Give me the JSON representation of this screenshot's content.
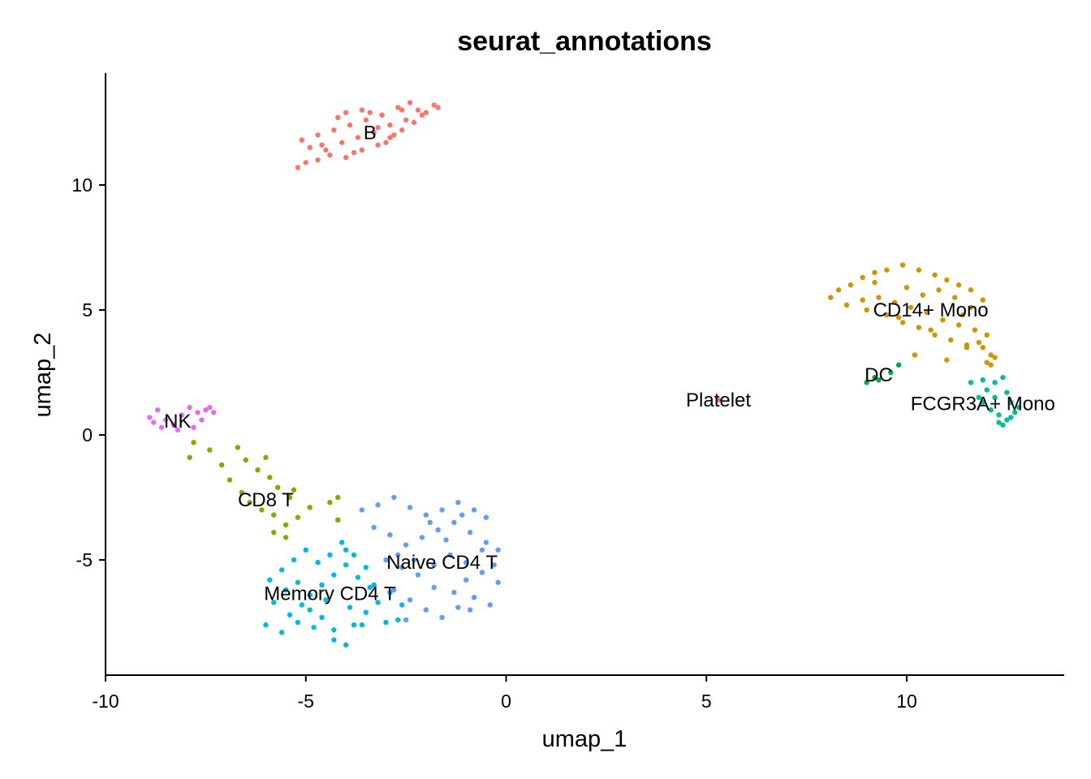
{
  "chart_data": {
    "type": "scatter",
    "title": "seurat_annotations",
    "xlabel": "umap_1",
    "ylabel": "umap_2",
    "xlim": [
      -10,
      14
    ],
    "ylim": [
      -9.5,
      14.5
    ],
    "x_ticks": [
      -10,
      -5,
      0,
      5,
      10
    ],
    "x_tick_labels": [
      "-10",
      "-5",
      "0",
      "5",
      "10"
    ],
    "y_ticks": [
      -5,
      0,
      5,
      10
    ],
    "y_tick_labels": [
      "-5",
      "0",
      "5",
      "10"
    ],
    "grid": false,
    "legend": "none",
    "series": [
      {
        "name": "B",
        "color": "#F8766D",
        "label_at": [
          -3.4,
          12.1
        ],
        "points": [
          [
            -5.2,
            10.7
          ],
          [
            -5.0,
            10.9
          ],
          [
            -4.7,
            11.0
          ],
          [
            -4.4,
            11.2
          ],
          [
            -4.0,
            11.1
          ],
          [
            -3.6,
            11.4
          ],
          [
            -3.2,
            11.6
          ],
          [
            -2.9,
            11.9
          ],
          [
            -2.6,
            12.2
          ],
          [
            -2.3,
            12.5
          ],
          [
            -2.0,
            12.9
          ],
          [
            -1.7,
            13.1
          ],
          [
            -5.1,
            11.8
          ],
          [
            -4.7,
            12.0
          ],
          [
            -4.3,
            12.2
          ],
          [
            -3.9,
            12.4
          ],
          [
            -3.5,
            12.6
          ],
          [
            -3.1,
            12.8
          ],
          [
            -2.7,
            13.1
          ],
          [
            -2.4,
            13.3
          ],
          [
            -4.9,
            11.5
          ],
          [
            -4.5,
            11.4
          ],
          [
            -4.1,
            11.7
          ],
          [
            -3.7,
            11.9
          ],
          [
            -3.3,
            12.1
          ],
          [
            -2.9,
            12.4
          ],
          [
            -2.5,
            12.6
          ],
          [
            -2.1,
            12.8
          ],
          [
            -4.0,
            12.9
          ],
          [
            -3.6,
            13.0
          ],
          [
            -3.2,
            12.3
          ],
          [
            -2.8,
            12.0
          ],
          [
            -4.6,
            11.6
          ],
          [
            -3.8,
            11.3
          ],
          [
            -3.0,
            11.7
          ],
          [
            -2.2,
            13.0
          ],
          [
            -1.8,
            13.2
          ],
          [
            -4.2,
            12.7
          ],
          [
            -3.4,
            12.9
          ],
          [
            -2.6,
            13.0
          ]
        ]
      },
      {
        "name": "CD14+ Mono",
        "color": "#CD9600",
        "label_at": [
          10.6,
          5.0
        ],
        "points": [
          [
            8.1,
            5.5
          ],
          [
            8.3,
            5.8
          ],
          [
            8.6,
            6.0
          ],
          [
            8.9,
            6.3
          ],
          [
            9.2,
            6.5
          ],
          [
            9.5,
            6.6
          ],
          [
            9.9,
            6.8
          ],
          [
            10.3,
            6.6
          ],
          [
            10.7,
            6.4
          ],
          [
            11.0,
            6.2
          ],
          [
            11.3,
            6.0
          ],
          [
            11.6,
            5.8
          ],
          [
            11.9,
            5.4
          ],
          [
            8.5,
            5.2
          ],
          [
            8.9,
            5.4
          ],
          [
            9.3,
            5.5
          ],
          [
            9.7,
            5.3
          ],
          [
            10.1,
            5.1
          ],
          [
            10.5,
            4.9
          ],
          [
            10.9,
            4.6
          ],
          [
            11.3,
            4.4
          ],
          [
            11.7,
            4.2
          ],
          [
            12.0,
            4.0
          ],
          [
            9.5,
            4.8
          ],
          [
            9.9,
            4.5
          ],
          [
            10.3,
            4.3
          ],
          [
            10.7,
            4.0
          ],
          [
            11.1,
            3.8
          ],
          [
            11.5,
            3.6
          ],
          [
            11.9,
            3.5
          ],
          [
            12.1,
            3.2
          ],
          [
            12.1,
            2.8
          ],
          [
            10.2,
            3.2
          ],
          [
            11.0,
            3.0
          ],
          [
            11.5,
            3.5
          ],
          [
            12.2,
            3.1
          ],
          [
            9.2,
            6.1
          ],
          [
            10.0,
            5.9
          ],
          [
            10.4,
            5.6
          ],
          [
            10.8,
            5.8
          ],
          [
            11.2,
            5.5
          ],
          [
            11.6,
            5.1
          ],
          [
            9.0,
            5.0
          ],
          [
            9.8,
            4.7
          ],
          [
            10.6,
            4.2
          ],
          [
            11.4,
            4.8
          ],
          [
            11.8,
            3.7
          ],
          [
            12.0,
            2.9
          ]
        ]
      },
      {
        "name": "DC",
        "color": "#00A94F",
        "label_at": [
          9.3,
          2.4
        ],
        "points": [
          [
            9.0,
            2.1
          ],
          [
            9.3,
            2.2
          ],
          [
            9.6,
            2.5
          ],
          [
            9.8,
            2.8
          ],
          [
            9.2,
            2.3
          ]
        ]
      },
      {
        "name": "FCGR3A+ Mono",
        "color": "#00BF96",
        "label_at": [
          11.9,
          1.25
        ],
        "points": [
          [
            11.6,
            2.1
          ],
          [
            11.9,
            2.2
          ],
          [
            12.2,
            2.1
          ],
          [
            12.4,
            2.3
          ],
          [
            12.5,
            1.7
          ],
          [
            12.2,
            1.5
          ],
          [
            11.9,
            1.3
          ],
          [
            12.1,
            1.0
          ],
          [
            12.3,
            0.8
          ],
          [
            12.5,
            0.6
          ],
          [
            12.4,
            0.4
          ],
          [
            12.7,
            0.9
          ],
          [
            12.6,
            1.3
          ],
          [
            12.0,
            1.8
          ],
          [
            11.8,
            1.5
          ],
          [
            12.3,
            0.5
          ],
          [
            12.6,
            0.7
          ],
          [
            12.8,
            1.1
          ]
        ]
      },
      {
        "name": "Memory CD4 T",
        "color": "#00B8E7",
        "label_at": [
          -4.4,
          -6.35
        ],
        "points": [
          [
            -6.0,
            -7.6
          ],
          [
            -5.6,
            -7.9
          ],
          [
            -5.2,
            -7.5
          ],
          [
            -4.9,
            -7.0
          ],
          [
            -4.6,
            -7.3
          ],
          [
            -4.3,
            -7.8
          ],
          [
            -4.0,
            -8.4
          ],
          [
            -4.3,
            -8.2
          ],
          [
            -3.8,
            -7.6
          ],
          [
            -3.5,
            -7.1
          ],
          [
            -3.2,
            -6.7
          ],
          [
            -2.9,
            -6.3
          ],
          [
            -2.6,
            -6.8
          ],
          [
            -5.8,
            -6.7
          ],
          [
            -5.5,
            -6.2
          ],
          [
            -5.2,
            -5.9
          ],
          [
            -4.9,
            -6.4
          ],
          [
            -4.6,
            -6.0
          ],
          [
            -4.3,
            -5.6
          ],
          [
            -4.0,
            -5.2
          ],
          [
            -3.7,
            -5.7
          ],
          [
            -3.4,
            -6.1
          ],
          [
            -5.6,
            -5.4
          ],
          [
            -5.3,
            -5.0
          ],
          [
            -5.0,
            -4.6
          ],
          [
            -4.7,
            -5.1
          ],
          [
            -4.4,
            -4.8
          ],
          [
            -4.1,
            -4.3
          ],
          [
            -3.8,
            -4.8
          ],
          [
            -3.5,
            -5.3
          ],
          [
            -4.2,
            -3.4
          ],
          [
            -5.9,
            -5.8
          ],
          [
            -5.4,
            -7.2
          ],
          [
            -4.8,
            -7.7
          ],
          [
            -3.6,
            -7.6
          ],
          [
            -3.0,
            -7.5
          ],
          [
            -2.7,
            -7.4
          ],
          [
            -5.1,
            -6.8
          ],
          [
            -4.5,
            -6.6
          ],
          [
            -3.9,
            -6.9
          ],
          [
            -3.3,
            -6.0
          ],
          [
            -4.0,
            -4.6
          ]
        ]
      },
      {
        "name": "Naive CD4 T",
        "color": "#619CFF",
        "label_at": [
          -1.6,
          -5.1
        ],
        "points": [
          [
            -3.6,
            -3.0
          ],
          [
            -3.2,
            -2.8
          ],
          [
            -2.8,
            -2.5
          ],
          [
            -2.4,
            -2.9
          ],
          [
            -2.0,
            -3.2
          ],
          [
            -1.6,
            -3.0
          ],
          [
            -1.2,
            -2.7
          ],
          [
            -0.8,
            -3.0
          ],
          [
            -0.5,
            -3.3
          ],
          [
            -3.3,
            -3.7
          ],
          [
            -2.9,
            -4.0
          ],
          [
            -2.5,
            -4.4
          ],
          [
            -2.1,
            -4.1
          ],
          [
            -1.7,
            -3.8
          ],
          [
            -1.3,
            -3.5
          ],
          [
            -0.9,
            -3.9
          ],
          [
            -0.5,
            -4.3
          ],
          [
            -0.2,
            -4.6
          ],
          [
            -3.0,
            -5.0
          ],
          [
            -2.6,
            -5.3
          ],
          [
            -2.2,
            -5.6
          ],
          [
            -1.8,
            -5.2
          ],
          [
            -1.4,
            -4.8
          ],
          [
            -1.0,
            -5.1
          ],
          [
            -0.6,
            -5.5
          ],
          [
            -0.2,
            -5.9
          ],
          [
            -2.8,
            -6.2
          ],
          [
            -2.4,
            -6.6
          ],
          [
            -2.0,
            -7.0
          ],
          [
            -1.6,
            -7.3
          ],
          [
            -1.2,
            -6.9
          ],
          [
            -0.8,
            -6.5
          ],
          [
            -0.4,
            -6.8
          ],
          [
            -1.8,
            -6.1
          ],
          [
            -1.0,
            -5.8
          ],
          [
            -0.6,
            -4.6
          ],
          [
            -1.5,
            -4.2
          ],
          [
            -2.3,
            -5.0
          ],
          [
            -0.3,
            -5.2
          ],
          [
            -1.9,
            -3.5
          ],
          [
            -1.1,
            -3.2
          ],
          [
            -2.7,
            -4.8
          ],
          [
            -1.3,
            -6.3
          ],
          [
            -2.5,
            -7.4
          ],
          [
            -0.9,
            -7.0
          ]
        ]
      },
      {
        "name": "NK",
        "color": "#E36EF6",
        "label_at": [
          -8.2,
          0.55
        ],
        "points": [
          [
            -8.9,
            0.7
          ],
          [
            -8.7,
            1.0
          ],
          [
            -8.5,
            0.6
          ],
          [
            -8.3,
            0.4
          ],
          [
            -8.1,
            0.8
          ],
          [
            -7.9,
            1.1
          ],
          [
            -7.7,
            0.9
          ],
          [
            -7.5,
            1.0
          ],
          [
            -7.3,
            0.9
          ],
          [
            -8.6,
            0.3
          ],
          [
            -8.2,
            0.2
          ],
          [
            -7.8,
            0.3
          ],
          [
            -7.6,
            0.6
          ],
          [
            -8.8,
            0.5
          ],
          [
            -7.4,
            1.1
          ]
        ]
      },
      {
        "name": "CD8 T",
        "color": "#7CAE00",
        "label_at": [
          -6.0,
          -2.6
        ],
        "points": [
          [
            -7.8,
            -0.3
          ],
          [
            -7.4,
            -0.6
          ],
          [
            -7.1,
            -1.2
          ],
          [
            -6.9,
            -1.8
          ],
          [
            -6.6,
            -2.3
          ],
          [
            -6.4,
            -2.7
          ],
          [
            -6.1,
            -3.0
          ],
          [
            -5.8,
            -3.2
          ],
          [
            -5.5,
            -3.6
          ],
          [
            -5.2,
            -3.3
          ],
          [
            -4.9,
            -2.9
          ],
          [
            -6.5,
            -1.0
          ],
          [
            -6.2,
            -1.4
          ],
          [
            -5.9,
            -1.7
          ],
          [
            -5.7,
            -2.1
          ],
          [
            -5.4,
            -2.5
          ],
          [
            -5.8,
            -3.9
          ],
          [
            -5.5,
            -4.1
          ],
          [
            -4.2,
            -2.5
          ],
          [
            -4.4,
            -2.7
          ],
          [
            -6.7,
            -0.5
          ],
          [
            -6.0,
            -0.9
          ],
          [
            -7.9,
            -0.9
          ],
          [
            -5.3,
            -2.2
          ],
          [
            -4.2,
            -3.4
          ]
        ]
      },
      {
        "name": "Platelet",
        "color": "#FF61C3",
        "label_at": [
          5.3,
          1.4
        ],
        "points": [
          [
            5.3,
            1.4
          ]
        ]
      }
    ]
  }
}
